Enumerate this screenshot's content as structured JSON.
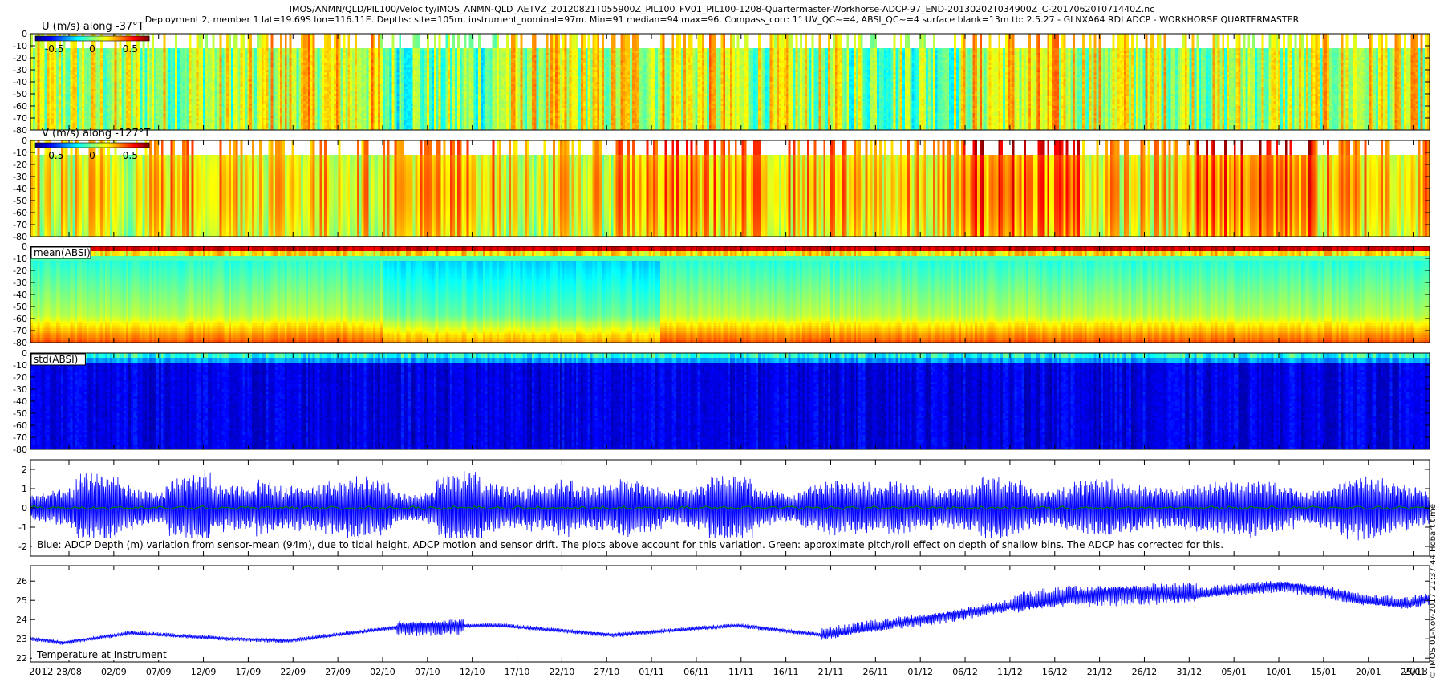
{
  "titles": {
    "line1": "IMOS/ANMN/QLD/PIL100/Velocity/IMOS_ANMN-QLD_AETVZ_20120821T055900Z_PIL100_FV01_PIL100-1208-Quartermaster-Workhorse-ADCP-97_END-20130202T034900Z_C-20170620T071440Z.nc",
    "line2": "Deployment 2, member 1 lat=19.69S lon=116.11E. Depths: site=105m, instrument_nominal=97m. Min=91 median=94 max=96. Compass_corr: 1° UV_QC~=4, ABSI_QC~=4 surface blank=13m tb: 2.5.27 - GLNXA64 RDI ADCP - WORKHORSE QUARTERMASTER"
  },
  "side_note": "© IMOS 01-Nov-2017 21:37:44 Hobart time",
  "x_axis": {
    "year_left": "2012",
    "year_right": "2013",
    "ticks": [
      "28/08",
      "02/09",
      "07/09",
      "12/09",
      "17/09",
      "22/09",
      "27/09",
      "02/10",
      "07/10",
      "12/10",
      "17/10",
      "22/10",
      "27/10",
      "01/11",
      "06/11",
      "11/11",
      "16/11",
      "21/11",
      "26/11",
      "01/12",
      "06/12",
      "11/12",
      "16/12",
      "21/12",
      "26/12",
      "31/12",
      "05/01",
      "10/01",
      "15/01",
      "20/01",
      "25/01"
    ]
  },
  "colorbar_ticks": [
    "-0.5",
    "0",
    "0.5"
  ],
  "colors": {
    "line_blue": "#0000ff",
    "line_green": "#008000"
  },
  "chart_data": [
    {
      "type": "heatmap",
      "title": "U (m/s) along -37°T",
      "ylim": [
        -80,
        0
      ],
      "yticks": [
        0,
        -10,
        -20,
        -30,
        -40,
        -50,
        -60,
        -70,
        -80
      ],
      "colorbar": {
        "range": [
          -0.75,
          0.75
        ],
        "ticks": [
          -0.5,
          0,
          0.5
        ]
      },
      "blank_above_depth": -13,
      "colors_by_time_and_depth": [
        0.0,
        0.0,
        0.1,
        -0.1,
        0.05,
        0.1,
        0.0,
        -0.05,
        0.1,
        0.05,
        0.0,
        0.05
      ]
    },
    {
      "type": "heatmap",
      "title": "V (m/s) along -127°T",
      "ylim": [
        -80,
        0
      ],
      "yticks": [
        0,
        -10,
        -20,
        -30,
        -40,
        -50,
        -60,
        -70,
        -80
      ],
      "colorbar": {
        "range": [
          -0.75,
          0.75
        ],
        "ticks": [
          -0.5,
          0,
          0.5
        ]
      },
      "blank_above_depth": -13,
      "colors_by_time_and_depth": [
        0.05,
        0.15,
        0.1,
        0.15,
        0.05,
        0.2,
        0.15,
        0.1,
        0.3,
        0.1,
        0.3,
        0.15
      ]
    },
    {
      "type": "heatmap",
      "title": "mean(ABSI)",
      "ylim": [
        -80,
        0
      ],
      "yticks": [
        0,
        -10,
        -20,
        -30,
        -40,
        -50,
        -60,
        -70,
        -80
      ]
    },
    {
      "type": "heatmap",
      "title": "std(ABSI)",
      "ylim": [
        -80,
        0
      ],
      "yticks": [
        0,
        -10,
        -20,
        -30,
        -40,
        -50,
        -60,
        -70,
        -80
      ]
    },
    {
      "type": "line",
      "caption": "Blue: ADCP Depth (m) variation from sensor-mean (94m), due to tidal height, ADCP motion and sensor drift. The plots above account for this variation. Green: approximate pitch/roll effect on depth of shallow bins. The ADCP has corrected for this.",
      "ylim": [
        -2.5,
        2.5
      ],
      "yticks": [
        2,
        1,
        0,
        -1,
        -2
      ],
      "series": [
        {
          "color": "blue",
          "tidal_amplitude_envelope_m": [
            1.0,
            1.6,
            1.2,
            1.8,
            1.1,
            1.6,
            1.3,
            1.5,
            1.0,
            1.7,
            1.2,
            1.6,
            1.1,
            1.5,
            1.2,
            1.6,
            1.0,
            1.4,
            1.2,
            1.6,
            1.1,
            1.5,
            1.3,
            1.4,
            1.2,
            1.5,
            1.3,
            1.4,
            1.2,
            1.5,
            1.3
          ]
        },
        {
          "color": "green",
          "approx_range_m": [
            -0.1,
            0.1
          ]
        }
      ]
    },
    {
      "type": "line",
      "caption": "Temperature at Instrument",
      "ylim": [
        21.8,
        26.8
      ],
      "yticks": [
        26,
        25,
        24,
        23,
        22
      ],
      "series": [
        {
          "color": "blue",
          "anchor_times_days": [
            0,
            4,
            12,
            24,
            31,
            44,
            56,
            70,
            85,
            95,
            110,
            125,
            132,
            140,
            150,
            155,
            160,
            165,
            168
          ],
          "anchor_values": [
            23.0,
            22.8,
            23.3,
            23.0,
            22.9,
            23.6,
            23.7,
            23.2,
            23.7,
            23.2,
            24.2,
            25.2,
            25.4,
            25.3,
            25.8,
            25.5,
            25.0,
            24.8,
            25.1
          ]
        }
      ]
    }
  ]
}
